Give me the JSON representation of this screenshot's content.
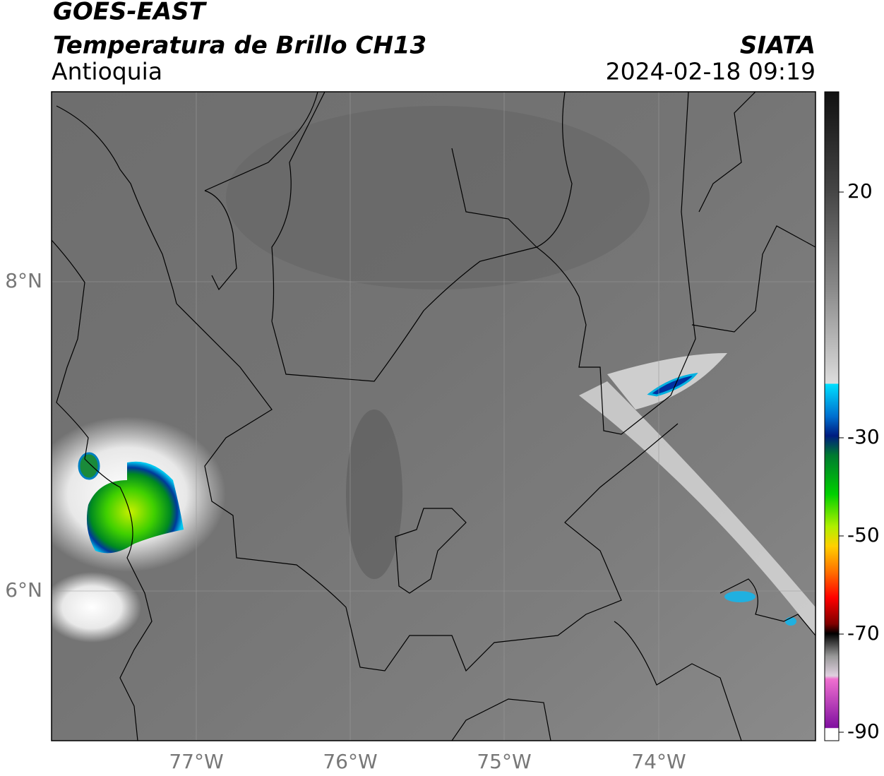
{
  "header": {
    "title": "GOES-EAST",
    "subtitle": "Temperatura de Brillo CH13",
    "region": "Antioquia",
    "source": "SIATA",
    "timestamp": "2024-02-18 09:19"
  },
  "map": {
    "lat_labels": [
      "8°N",
      "6°N"
    ],
    "lon_labels": [
      "77°W",
      "76°W",
      "75°W",
      "74°W"
    ]
  },
  "colorbar": {
    "ticks": [
      "20",
      "-30",
      "-50",
      "-70",
      "-90"
    ]
  }
}
